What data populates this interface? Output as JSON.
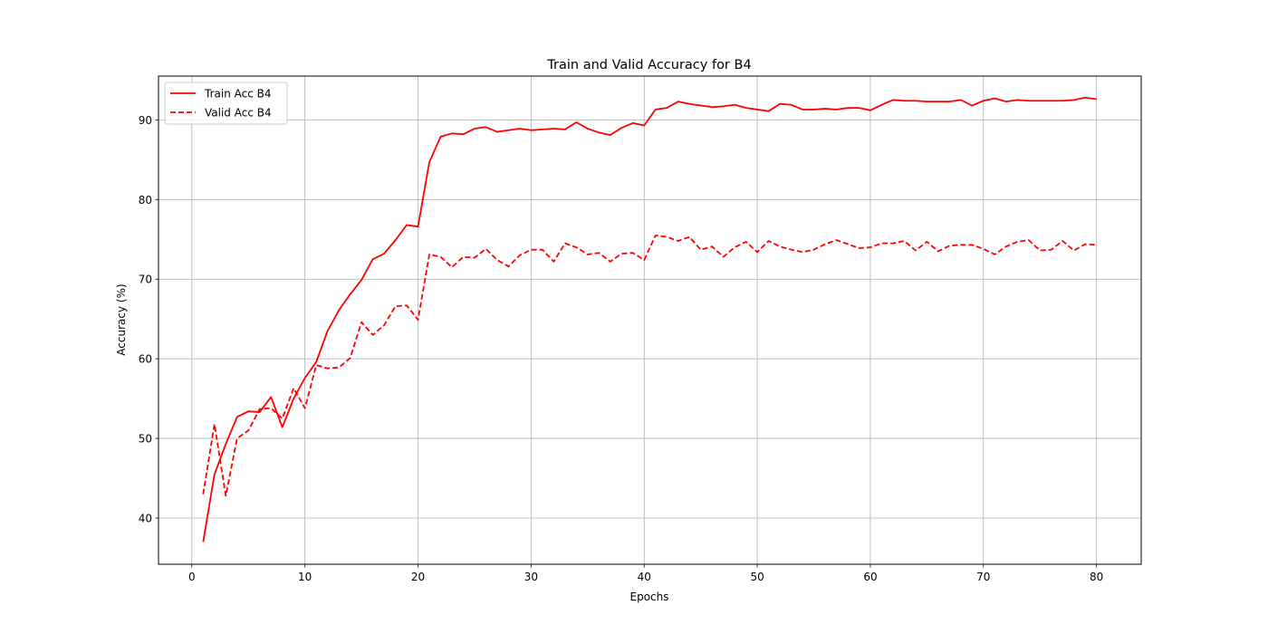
{
  "chart_data": {
    "type": "line",
    "title": "Train and Valid Accuracy for B4",
    "xlabel": "Epochs",
    "ylabel": "Accuracy (%)",
    "xlim": [
      -2.95,
      83.95
    ],
    "ylim": [
      34.2,
      95.5
    ],
    "xticks": [
      0,
      10,
      20,
      30,
      40,
      50,
      60,
      70,
      80
    ],
    "yticks": [
      40,
      50,
      60,
      70,
      80,
      90
    ],
    "grid": true,
    "legend_position": "upper-left",
    "line_color": "#ff0000",
    "x": [
      1,
      2,
      3,
      4,
      5,
      6,
      7,
      8,
      9,
      10,
      11,
      12,
      13,
      14,
      15,
      16,
      17,
      18,
      19,
      20,
      21,
      22,
      23,
      24,
      25,
      26,
      27,
      28,
      29,
      30,
      31,
      32,
      33,
      34,
      35,
      36,
      37,
      38,
      39,
      40,
      41,
      42,
      43,
      44,
      45,
      46,
      47,
      48,
      49,
      50,
      51,
      52,
      53,
      54,
      55,
      56,
      57,
      58,
      59,
      60,
      61,
      62,
      63,
      64,
      65,
      66,
      67,
      68,
      69,
      70,
      71,
      72,
      73,
      74,
      75,
      76,
      77,
      78,
      79,
      80
    ],
    "series": [
      {
        "name": "Train Acc B4",
        "style": "solid",
        "values": [
          37.0,
          45.5,
          49.3,
          52.7,
          53.4,
          53.3,
          55.2,
          51.4,
          55.0,
          57.6,
          59.6,
          63.5,
          66.1,
          68.1,
          69.9,
          72.5,
          73.2,
          74.9,
          76.8,
          76.6,
          84.7,
          87.9,
          88.3,
          88.2,
          88.9,
          89.1,
          88.5,
          88.7,
          88.9,
          88.7,
          88.8,
          88.9,
          88.8,
          89.7,
          88.9,
          88.4,
          88.1,
          89.0,
          89.6,
          89.3,
          91.3,
          91.5,
          92.3,
          92.0,
          91.8,
          91.6,
          91.7,
          91.9,
          91.5,
          91.3,
          91.1,
          92.0,
          91.9,
          91.3,
          91.3,
          91.4,
          91.3,
          91.5,
          91.5,
          91.2,
          91.9,
          92.5,
          92.4,
          92.4,
          92.3,
          92.3,
          92.3,
          92.5,
          91.8,
          92.4,
          92.7,
          92.3,
          92.5,
          92.4,
          92.4,
          92.4,
          92.4,
          92.5,
          92.8,
          92.6
        ]
      },
      {
        "name": "Valid Acc B4",
        "style": "dashed",
        "values": [
          43.0,
          51.8,
          42.8,
          50.0,
          51.0,
          53.7,
          53.8,
          52.5,
          56.3,
          53.8,
          59.2,
          58.8,
          58.9,
          60.1,
          64.6,
          63.0,
          64.2,
          66.6,
          66.7,
          64.9,
          73.1,
          72.8,
          71.5,
          72.8,
          72.7,
          73.8,
          72.4,
          71.6,
          73.0,
          73.7,
          73.7,
          72.2,
          74.5,
          74.0,
          73.1,
          73.3,
          72.2,
          73.2,
          73.3,
          72.4,
          75.5,
          75.3,
          74.8,
          75.3,
          73.7,
          74.1,
          72.8,
          74.0,
          74.7,
          73.4,
          74.8,
          74.1,
          73.7,
          73.4,
          73.7,
          74.4,
          74.9,
          74.4,
          73.9,
          74.0,
          74.5,
          74.5,
          74.8,
          73.6,
          74.7,
          73.5,
          74.2,
          74.3,
          74.3,
          73.8,
          73.1,
          74.1,
          74.7,
          74.9,
          73.6,
          73.7,
          74.8,
          73.6,
          74.4,
          74.3
        ]
      }
    ]
  }
}
